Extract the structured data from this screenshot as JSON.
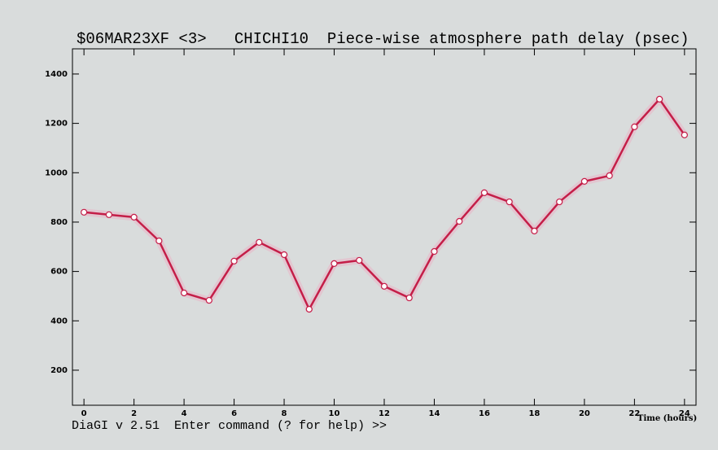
{
  "chart_data": {
    "type": "line",
    "title": "$06MAR23XF <3>   CHICHI10  Piece-wise atmosphere path delay (psec)",
    "xlabel": "Time (hours)",
    "x": [
      0,
      1,
      2,
      3,
      4,
      5,
      6,
      7,
      8,
      9,
      10,
      11,
      12,
      13,
      14,
      15,
      16,
      17,
      18,
      19,
      20,
      21,
      22,
      23,
      24
    ],
    "values": [
      840,
      830,
      820,
      724,
      513,
      483,
      642,
      718,
      668,
      447,
      632,
      645,
      540,
      493,
      681,
      803,
      919,
      882,
      764,
      882,
      965,
      988,
      1186,
      1298,
      1153
    ],
    "color": "#c41e48",
    "xlim": [
      -0.46,
      24.46
    ],
    "ylim": [
      58,
      1502
    ],
    "xticks": [
      0,
      2,
      4,
      6,
      8,
      10,
      12,
      14,
      16,
      18,
      20,
      22,
      24
    ],
    "yticks": [
      200,
      400,
      600,
      800,
      1000,
      1200,
      1400
    ]
  },
  "command_prompt": "DiaGI v 2.51  Enter command (? for help) >>"
}
